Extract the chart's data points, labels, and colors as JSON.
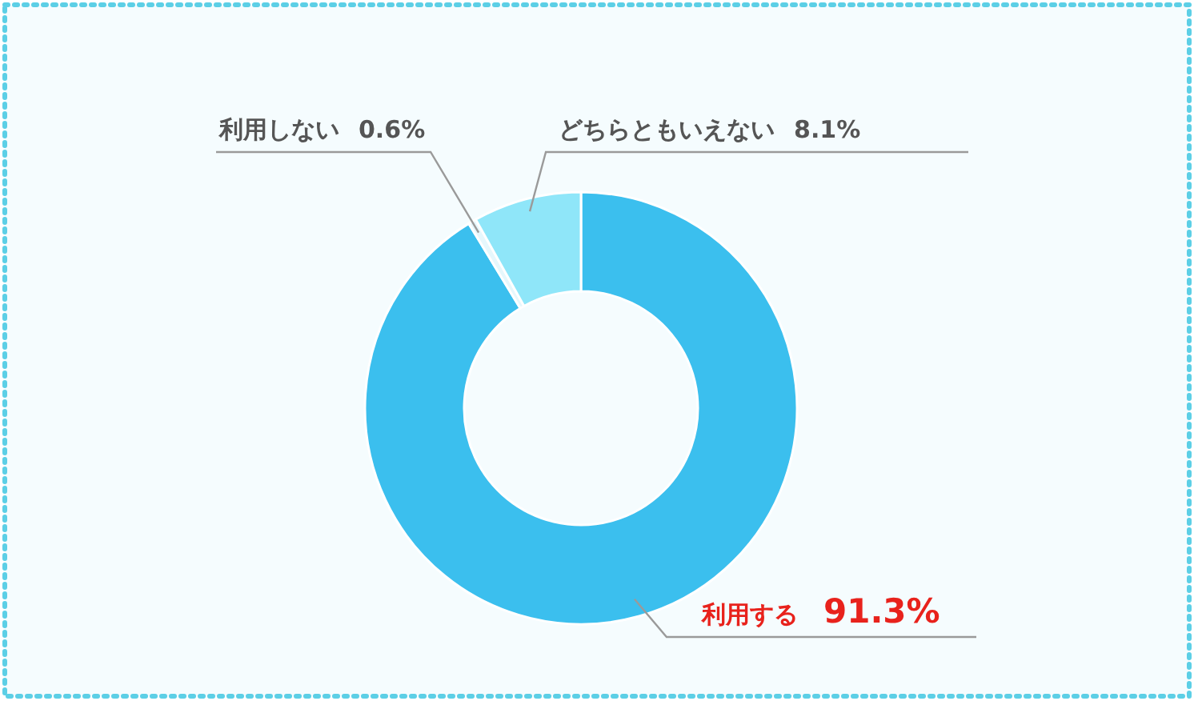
{
  "chart_data": {
    "type": "donut",
    "categories": [
      "利用する",
      "利用しない",
      "どちらともいえない"
    ],
    "values": [
      91.3,
      0.6,
      8.1
    ],
    "colors": [
      "#3bbfee",
      "#e6f7fc",
      "#8fe6f9"
    ],
    "value_labels": [
      "91.3%",
      "0.6%",
      "8.1%"
    ]
  }
}
